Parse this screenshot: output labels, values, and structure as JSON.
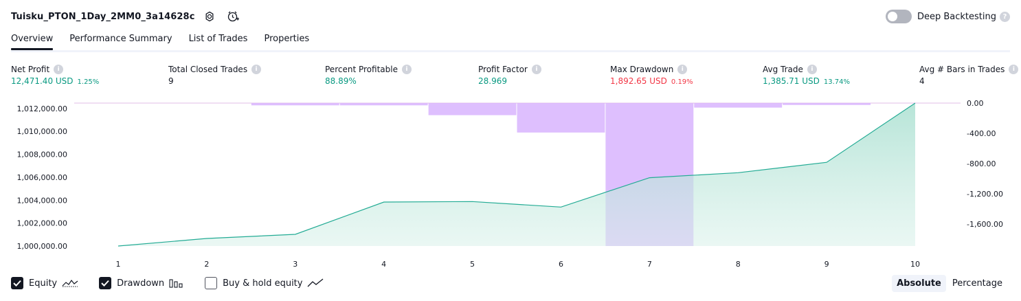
{
  "header": {
    "strategy_name": "Tuisku_PTON_1Day_2MM0_3a14628c",
    "deep_backtesting_label": "Deep Backtesting",
    "deep_backtesting_on": false,
    "icons": [
      "settings-icon",
      "add-alert-icon",
      "help-icon"
    ]
  },
  "tabs": [
    {
      "label": "Overview",
      "active": true
    },
    {
      "label": "Performance Summary",
      "active": false
    },
    {
      "label": "List of Trades",
      "active": false
    },
    {
      "label": "Properties",
      "active": false
    }
  ],
  "stats": {
    "net_profit": {
      "label": "Net Profit",
      "value": "12,471.40 USD",
      "pct": "1.25%"
    },
    "total_closed_trades": {
      "label": "Total Closed Trades",
      "value": "9"
    },
    "percent_profitable": {
      "label": "Percent Profitable",
      "value": "88.89%"
    },
    "profit_factor": {
      "label": "Profit Factor",
      "value": "28.969"
    },
    "max_drawdown": {
      "label": "Max Drawdown",
      "value": "1,892.65 USD",
      "pct": "0.19%"
    },
    "avg_trade": {
      "label": "Avg Trade",
      "value": "1,385.71 USD",
      "pct": "13.74%"
    },
    "avg_bars": {
      "label": "Avg # Bars in Trades",
      "value": "4"
    }
  },
  "colors": {
    "positive": "#089981",
    "negative": "#f23645",
    "equity_line": "#22ab94",
    "equity_fill": "#d9f1ea",
    "drawdown_fill": "#e1bee7",
    "drawdown_bar": "#d8b4fe"
  },
  "chart_data": {
    "type": "area",
    "x": [
      1,
      2,
      3,
      4,
      5,
      6,
      7,
      8,
      9,
      10
    ],
    "series": [
      {
        "name": "Equity",
        "axis": "left",
        "kind": "area",
        "values": [
          1000000,
          1000660,
          1001020,
          1003840,
          1003880,
          1003400,
          1005960,
          1006400,
          1007300,
          1012471
        ]
      },
      {
        "name": "Drawdown",
        "axis": "right",
        "kind": "bar",
        "values": [
          0,
          0,
          -30,
          -30,
          -160,
          -390,
          -1893,
          -60,
          -25,
          0
        ]
      }
    ],
    "left_axis": {
      "ticks": [
        "1,012,000.00",
        "1,010,000.00",
        "1,008,000.00",
        "1,006,000.00",
        "1,004,000.00",
        "1,002,000.00",
        "1,000,000.00"
      ],
      "ylim": [
        1000000,
        1012471
      ]
    },
    "right_axis": {
      "ticks": [
        "0.00",
        "-400.00",
        "-800.00",
        "-1,200.00",
        "-1,600.00"
      ],
      "ylim": [
        -1893,
        0
      ]
    },
    "grid": false,
    "legend_placement": "bottom-left"
  },
  "footer": {
    "legend": [
      {
        "label": "Equity",
        "checked": true,
        "icon": "equity-line-icon"
      },
      {
        "label": "Drawdown",
        "checked": true,
        "icon": "drawdown-bars-icon"
      },
      {
        "label": "Buy & hold equity",
        "checked": false,
        "icon": "buy-hold-line-icon"
      }
    ],
    "modes": [
      {
        "label": "Absolute",
        "active": true
      },
      {
        "label": "Percentage",
        "active": false
      }
    ]
  }
}
